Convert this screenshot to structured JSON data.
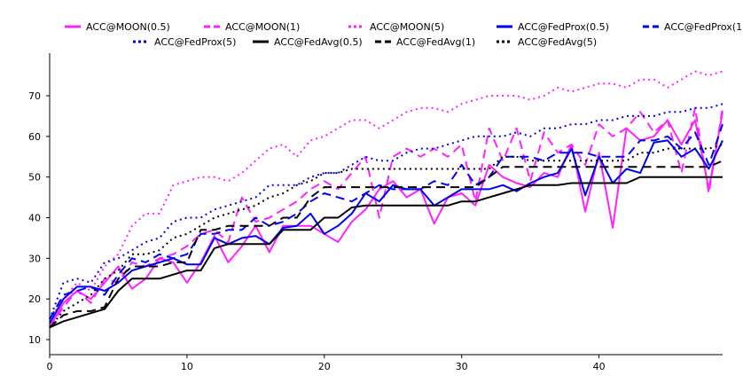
{
  "chart_data": {
    "type": "line",
    "title": "",
    "xlabel": "",
    "ylabel": "",
    "xlim": [
      0,
      49
    ],
    "ylim": [
      10,
      75
    ],
    "x_ticks": [
      0,
      10,
      20,
      30,
      40
    ],
    "y_ticks": [
      10,
      20,
      30,
      40,
      50,
      60,
      70
    ],
    "grid": false,
    "legend_position": "top",
    "x": [
      0,
      1,
      2,
      3,
      4,
      5,
      6,
      7,
      8,
      9,
      10,
      11,
      12,
      13,
      14,
      15,
      16,
      17,
      18,
      19,
      20,
      21,
      22,
      23,
      24,
      25,
      26,
      27,
      28,
      29,
      30,
      31,
      32,
      33,
      34,
      35,
      36,
      37,
      38,
      39,
      40,
      41,
      42,
      43,
      44,
      45,
      46,
      47,
      48,
      49
    ],
    "series": [
      {
        "name": "ACC@MOON(0.5)",
        "color": "#ff22ff",
        "dash": "solid",
        "values": [
          13,
          19,
          22,
          20,
          24,
          28,
          22.5,
          25,
          30,
          29,
          24,
          29,
          35.5,
          29,
          33,
          38,
          31.5,
          38,
          38,
          38,
          36,
          34,
          39,
          42,
          47,
          49,
          45,
          47,
          38.5,
          45,
          46,
          43,
          53,
          50,
          48.5,
          47.5,
          51,
          50,
          58,
          41.5,
          56,
          37.5,
          62,
          59,
          60,
          64,
          58,
          64,
          47,
          66
        ]
      },
      {
        "name": "ACC@MOON(1)",
        "color": "#ff22ff",
        "dash": "dashed",
        "values": [
          13,
          18,
          22,
          19,
          25,
          24,
          29,
          28,
          30,
          31,
          33,
          36,
          37,
          34,
          45,
          39,
          40,
          42,
          44,
          47,
          49,
          47,
          51,
          55,
          40,
          55,
          57,
          55,
          57,
          55,
          58,
          44,
          62,
          54,
          62,
          49,
          61,
          56,
          58,
          53,
          63,
          60,
          62,
          66,
          61,
          64,
          51,
          67,
          46,
          67
        ]
      },
      {
        "name": "ACC@MOON(5)",
        "color": "#ff22ff",
        "dash": "dotted",
        "values": [
          15,
          20,
          24,
          22,
          28,
          31,
          38,
          41,
          41,
          48,
          49,
          50,
          50,
          49,
          51,
          54,
          57,
          58,
          55,
          59,
          60,
          62,
          64,
          64,
          62,
          64,
          66,
          67,
          67,
          66,
          68,
          69,
          70,
          70,
          70,
          69,
          70,
          72,
          71,
          72,
          73,
          73,
          72,
          74,
          74,
          72,
          74,
          76,
          75,
          76
        ]
      },
      {
        "name": "ACC@FedProx(0.5)",
        "color": "#0000ee",
        "dash": "solid",
        "values": [
          14,
          20,
          23,
          23,
          22,
          24,
          27,
          28,
          29,
          30,
          28.5,
          28.5,
          35,
          33.5,
          35,
          35.5,
          33.5,
          37.5,
          38,
          41,
          36,
          38,
          41,
          46,
          44,
          48,
          47,
          47,
          43,
          45,
          47,
          47,
          47,
          48,
          46.5,
          48.5,
          50,
          51,
          57,
          45.5,
          55,
          48.5,
          52,
          51,
          58.5,
          59,
          55,
          57,
          52,
          59
        ]
      },
      {
        "name": "ACC@FedProx(1)",
        "color": "#0000ee",
        "dash": "dashed",
        "values": [
          15,
          21,
          22,
          23,
          21,
          26,
          30,
          29,
          31,
          30,
          31,
          36,
          36,
          37,
          37,
          40,
          38,
          39,
          41,
          44,
          46,
          45,
          44,
          46,
          48,
          47,
          47,
          47,
          49,
          48,
          53,
          48,
          50,
          55,
          55,
          55,
          54,
          56,
          56,
          56,
          55,
          55,
          55,
          59,
          59,
          60,
          57,
          61,
          53,
          63
        ]
      },
      {
        "name": "ACC@FedProx(5)",
        "color": "#0000ee",
        "dash": "dotted",
        "values": [
          15,
          24,
          25,
          24,
          29,
          30,
          32,
          34,
          35,
          39,
          40,
          40,
          42,
          43,
          44,
          45,
          48,
          48,
          48,
          50,
          51,
          51,
          53,
          55,
          54,
          54,
          56,
          57,
          57,
          58,
          59,
          60,
          60,
          60,
          61,
          60,
          62,
          62,
          63,
          63,
          64,
          64,
          65,
          65,
          65,
          66,
          66,
          67,
          67,
          68
        ]
      },
      {
        "name": "ACC@FedAvg(0.5)",
        "color": "#000000",
        "dash": "solid",
        "values": [
          13,
          14.5,
          15.5,
          16.5,
          17.5,
          22,
          25,
          25,
          25,
          26,
          27,
          27,
          32.5,
          33.5,
          33.5,
          33.5,
          33.5,
          37,
          37,
          37,
          40,
          40,
          42.5,
          43,
          43,
          43,
          43,
          43,
          43,
          43,
          44,
          44,
          45,
          46,
          47,
          48,
          48,
          48,
          48.5,
          48.5,
          48.5,
          48.5,
          48.5,
          50,
          50,
          50,
          50,
          50,
          50,
          50
        ]
      },
      {
        "name": "ACC@FedAvg(1)",
        "color": "#000000",
        "dash": "dashed",
        "values": [
          13,
          16,
          17,
          17,
          18,
          25,
          28,
          28,
          28,
          29,
          29,
          37,
          37,
          38,
          38,
          38,
          38,
          40,
          40,
          45,
          47.5,
          47.5,
          47.5,
          47.5,
          47.5,
          47.5,
          47.5,
          47.5,
          47.5,
          47.5,
          47.5,
          47.5,
          50,
          52.5,
          52.5,
          52.5,
          52.5,
          52.5,
          52.5,
          52.5,
          52.5,
          52.5,
          52.5,
          52.5,
          52.5,
          52.5,
          52.5,
          52.5,
          52.5,
          54
        ]
      },
      {
        "name": "ACC@FedAvg(5)",
        "color": "#000000",
        "dash": "dotted",
        "values": [
          13,
          17,
          19,
          21,
          25,
          27,
          31,
          31,
          32,
          35,
          36,
          38,
          40,
          41,
          42,
          43,
          45,
          46,
          48,
          49,
          51,
          51,
          52,
          52,
          52,
          52,
          52,
          52,
          52,
          52,
          52,
          52,
          52,
          55,
          55,
          54,
          54,
          54,
          54,
          54,
          54,
          54,
          54,
          56,
          56,
          57,
          57,
          57,
          57,
          58
        ]
      }
    ]
  }
}
